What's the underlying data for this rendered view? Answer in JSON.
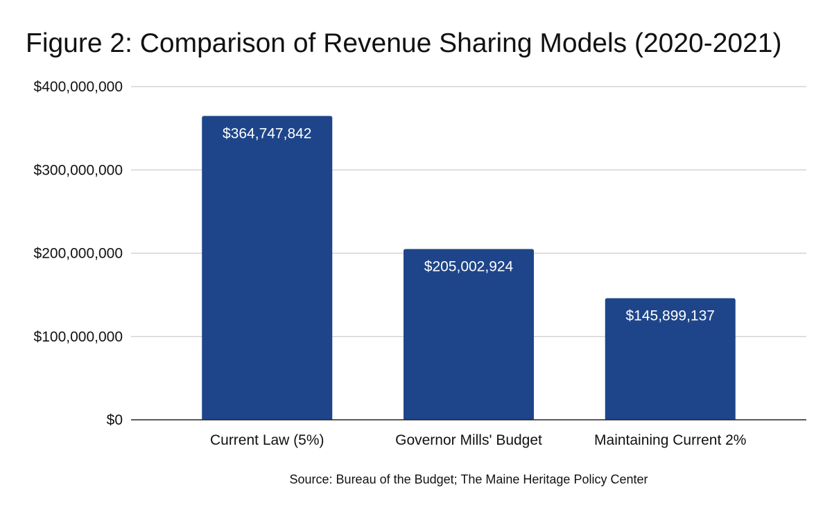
{
  "chart_data": {
    "type": "bar",
    "title": "Figure 2: Comparison of Revenue Sharing Models (2020-2021)",
    "categories": [
      "Current Law (5%)",
      "Governor Mills' Budget",
      "Maintaining Current 2%"
    ],
    "values": [
      364747842,
      205002924,
      145899137
    ],
    "data_labels": [
      "$364,747,842",
      "$205,002,924",
      "$145,899,137"
    ],
    "ylim": [
      0,
      400000000
    ],
    "yticks": [
      0,
      100000000,
      200000000,
      300000000,
      400000000
    ],
    "ytick_labels": [
      "$0",
      "$100,000,000",
      "$200,000,000",
      "$300,000,000",
      "$400,000,000"
    ],
    "xlabel": "",
    "ylabel": "",
    "grid": true,
    "legend": "none",
    "source": "Source: Bureau of the Budget; The Maine Heritage Policy Center",
    "bar_color": "#1e4589"
  }
}
